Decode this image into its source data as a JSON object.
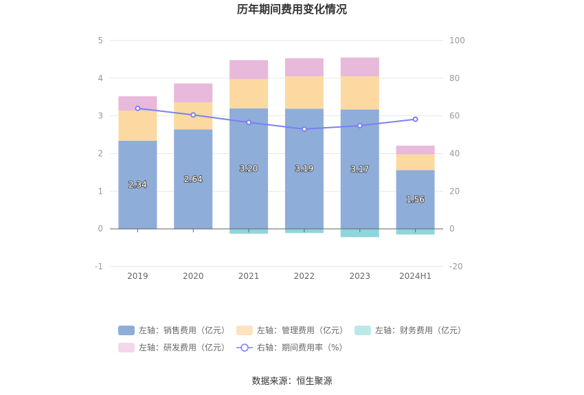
{
  "chart_data": {
    "type": "bar",
    "title": "历年期间费用变化情况",
    "categories": [
      "2019",
      "2020",
      "2021",
      "2022",
      "2023",
      "2024H1"
    ],
    "y_left": {
      "ylim": [
        -1,
        5
      ],
      "ticks": [
        "-1",
        "0",
        "1",
        "2",
        "3",
        "4",
        "5"
      ]
    },
    "y_right": {
      "ylim": [
        -20,
        100
      ],
      "ticks": [
        "-20",
        "0",
        "20",
        "40",
        "60",
        "80",
        "100"
      ]
    },
    "stacked_series": [
      {
        "name": "左轴：销售费用（亿元）",
        "color": "#8fadd9",
        "values": [
          2.34,
          2.64,
          3.2,
          3.19,
          3.17,
          1.56
        ],
        "labels": [
          "2.34",
          "2.64",
          "3.20",
          "3.19",
          "3.17",
          "1.56"
        ]
      },
      {
        "name": "左轴：管理费用（亿元）",
        "color": "#fcd9a0",
        "values": [
          0.8,
          0.72,
          0.78,
          0.86,
          0.88,
          0.42
        ]
      },
      {
        "name": "左轴：财务费用（亿元）",
        "color": "#8fd6dc",
        "values": [
          -0.01,
          -0.01,
          -0.13,
          -0.11,
          -0.22,
          -0.15
        ]
      },
      {
        "name": "左轴：研发费用（亿元）",
        "color": "#e8b9da",
        "values": [
          0.38,
          0.5,
          0.5,
          0.48,
          0.5,
          0.23
        ]
      }
    ],
    "line_series": {
      "name": "右轴：期间费用率（%）",
      "color": "#7b7ff0",
      "values": [
        64.0,
        60.5,
        56.5,
        53.0,
        54.8,
        58.2
      ]
    },
    "legend_position": "bottom",
    "legend_swatch_colors": [
      "#8fadd9",
      "#fde3be",
      "#bde8eb",
      "#f2d8ea",
      "#7b7ff0"
    ]
  },
  "source_text": "数据来源：恒生聚源"
}
